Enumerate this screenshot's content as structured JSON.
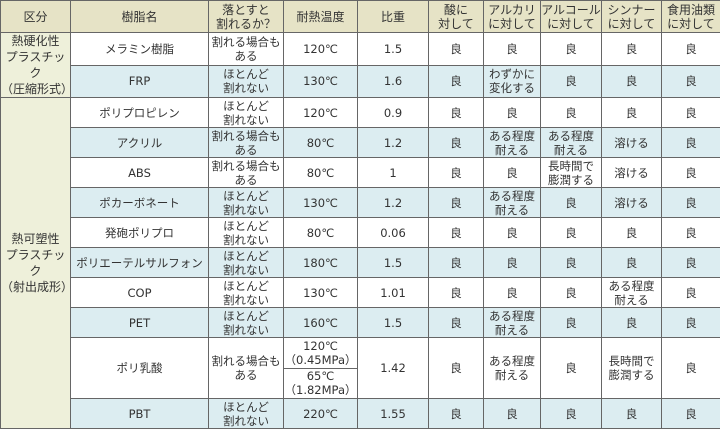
{
  "headers": [
    "区分",
    "樹脂名",
    "落とすと\n割れるか？",
    "耐熱温度",
    "比重",
    "酸に\n対して",
    "アルカリ\nに対して",
    "アルコール\nに対して",
    "シンナー\nに対して",
    "食用油類\nに対して"
  ],
  "categories": [
    {
      "label": "熱硬化性\nプラスチック\n（圧縮形式）",
      "rows": 2
    },
    {
      "label": "熱可塑性\nプラスチック\n（射出成形）",
      "rows": 10
    }
  ],
  "rows": [
    {
      "name": "メラミン樹脂",
      "drop": "割れる場合も\nある",
      "heat": [
        "120℃"
      ],
      "gravity": "1.5",
      "acid": "良",
      "alkali": "良",
      "alcohol": "良",
      "thinner": "良",
      "oil": "良"
    },
    {
      "name": "FRP",
      "drop": "ほとんど\n割れない",
      "heat": [
        "130℃"
      ],
      "gravity": "1.6",
      "acid": "良",
      "alkali": "わずかに\n変化する",
      "alcohol": "良",
      "thinner": "良",
      "oil": "良"
    },
    {
      "name": "ポリプロピレン",
      "drop": "ほとんど\n割れない",
      "heat": [
        "120℃"
      ],
      "gravity": "0.9",
      "acid": "良",
      "alkali": "良",
      "alcohol": "良",
      "thinner": "良",
      "oil": "良"
    },
    {
      "name": "アクリル",
      "drop": "割れる場合も\nある",
      "heat": [
        "80℃"
      ],
      "gravity": "1.2",
      "acid": "良",
      "alkali": "ある程度\n耐える",
      "alcohol": "ある程度\n耐える",
      "thinner": "溶ける",
      "oil": "良"
    },
    {
      "name": "ABS",
      "drop": "割れる場合も\nある",
      "heat": [
        "80℃"
      ],
      "gravity": "1",
      "acid": "良",
      "alkali": "良",
      "alcohol": "長時間で\n膨潤する",
      "thinner": "溶ける",
      "oil": "良"
    },
    {
      "name": "ポカーボネート",
      "drop": "ほとんど\n割れない",
      "heat": [
        "130℃"
      ],
      "gravity": "1.2",
      "acid": "良",
      "alkali": "ある程度\n耐える",
      "alcohol": "良",
      "thinner": "溶ける",
      "oil": "良"
    },
    {
      "name": "発砲ポリプロ",
      "drop": "ほとんど\n割れない",
      "heat": [
        "80℃"
      ],
      "gravity": "0.06",
      "acid": "良",
      "alkali": "良",
      "alcohol": "良",
      "thinner": "良",
      "oil": "良"
    },
    {
      "name": "ポリエーテルサルフォン",
      "drop": "ほとんど\n割れない",
      "heat": [
        "180℃"
      ],
      "gravity": "1.5",
      "acid": "良",
      "alkali": "良",
      "alcohol": "良",
      "thinner": "良",
      "oil": "良"
    },
    {
      "name": "COP",
      "drop": "ほとんど\n割れない",
      "heat": [
        "130℃"
      ],
      "gravity": "1.01",
      "acid": "良",
      "alkali": "良",
      "alcohol": "良",
      "thinner": "ある程度\n耐える",
      "oil": "良"
    },
    {
      "name": "PET",
      "drop": "ほとんど\n割れない",
      "heat": [
        "160℃"
      ],
      "gravity": "1.5",
      "acid": "良",
      "alkali": "ある程度\n耐える",
      "alcohol": "良",
      "thinner": "良",
      "oil": "良"
    },
    {
      "name": "ポリ乳酸",
      "drop": "割れる場合も\nある",
      "heat": [
        "120℃\n（0.45MPa）",
        "65℃\n（1.82MPa）"
      ],
      "gravity": "1.42",
      "acid": "良",
      "alkali": "ある程度\n耐える",
      "alcohol": "良",
      "thinner": "長時間で\n膨潤する",
      "oil": "良"
    },
    {
      "name": "PBT",
      "drop": "ほとんど\n割れない",
      "heat": [
        "220℃"
      ],
      "gravity": "1.55",
      "acid": "良",
      "alkali": "良",
      "alcohol": "良",
      "thinner": "良",
      "oil": "良"
    }
  ],
  "colors": {
    "header": "#e6e3c6",
    "category": "#eef0da",
    "row_alt": "#dcedf1",
    "row": "#ffffff",
    "border": "#666666"
  }
}
